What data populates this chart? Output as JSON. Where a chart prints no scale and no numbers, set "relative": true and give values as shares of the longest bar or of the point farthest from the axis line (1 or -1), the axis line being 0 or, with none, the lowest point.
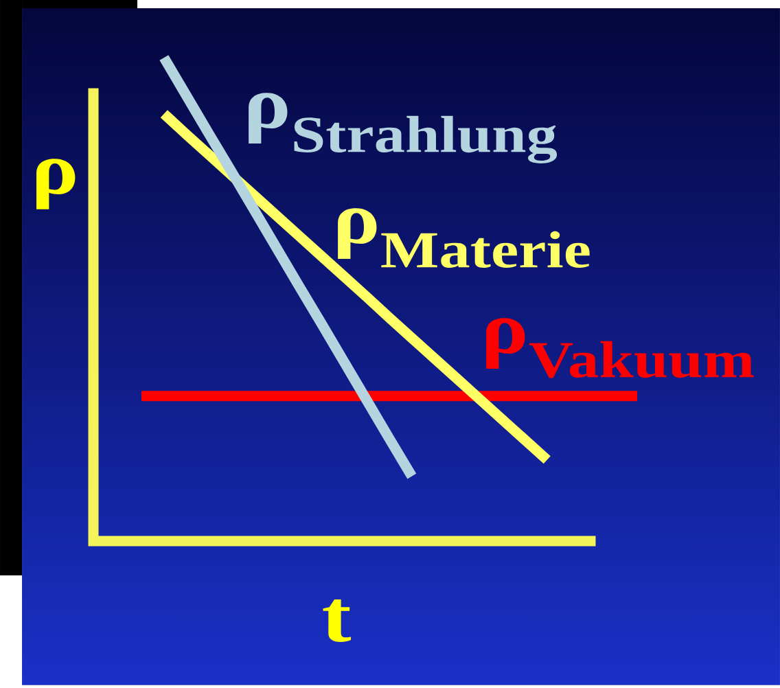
{
  "chart_data": {
    "type": "line",
    "relative": true,
    "xlabel": "t",
    "ylabel": "ρ",
    "categories": [
      null,
      null,
      null,
      null,
      null,
      null,
      null,
      null,
      null,
      null,
      null,
      null,
      null,
      null,
      null,
      null,
      null,
      null,
      null,
      null,
      null,
      null,
      null
    ],
    "series": [
      {
        "name": "\\text{ρ}_{\\text{Vakuum}}",
        "color": "#ff0000",
        "values": [
          0.3,
          0.3,
          0.3,
          0.3,
          0.3,
          0.3,
          0.3,
          0.3,
          0.3,
          0.3,
          0.3,
          0.3,
          0.3,
          0.3,
          0.3,
          0.3,
          0.3,
          0.3,
          0.3,
          0.3,
          0.3,
          0.3,
          0.3
        ]
      },
      {
        "name": "\\text{ρ}_{\\text{Materie}}",
        "color": "#ffff66",
        "values": [
          null,
          0.884,
          0.841,
          0.799,
          0.757,
          0.715,
          0.673,
          0.631,
          0.589,
          0.547,
          0.505,
          0.462,
          0.42,
          0.378,
          0.336,
          0.294,
          0.252,
          0.21,
          0.168,
          null,
          null,
          null,
          null
        ]
      },
      {
        "name": "\\text{ρ}_{\\text{Strahlung}}",
        "color": "#b4d4e0",
        "values": [
          null,
          1.0,
          0.921,
          0.842,
          0.764,
          0.685,
          0.606,
          0.527,
          0.449,
          0.37,
          0.291,
          0.212,
          0.134,
          null,
          null,
          null,
          null,
          null,
          null,
          null,
          null,
          null,
          null
        ]
      }
    ]
  }
}
